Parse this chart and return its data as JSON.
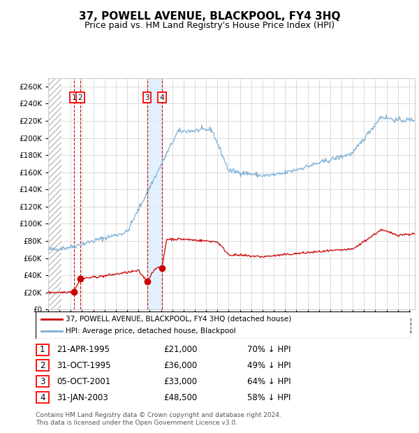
{
  "title": "37, POWELL AVENUE, BLACKPOOL, FY4 3HQ",
  "subtitle": "Price paid vs. HM Land Registry's House Price Index (HPI)",
  "title_fontsize": 11,
  "subtitle_fontsize": 9,
  "transactions": [
    {
      "num": 1,
      "date_label": "21-APR-1995",
      "date_x": 1995.31,
      "price": 21000,
      "pct": "70% ↓ HPI"
    },
    {
      "num": 2,
      "date_label": "31-OCT-1995",
      "date_x": 1995.83,
      "price": 36000,
      "pct": "49% ↓ HPI"
    },
    {
      "num": 3,
      "date_label": "05-OCT-2001",
      "date_x": 2001.76,
      "price": 33000,
      "pct": "64% ↓ HPI"
    },
    {
      "num": 4,
      "date_label": "31-JAN-2003",
      "date_x": 2003.08,
      "price": 48500,
      "pct": "58% ↓ HPI"
    }
  ],
  "legend_line1": "37, POWELL AVENUE, BLACKPOOL, FY4 3HQ (detached house)",
  "legend_line2": "HPI: Average price, detached house, Blackpool",
  "footer": "Contains HM Land Registry data © Crown copyright and database right 2024.\nThis data is licensed under the Open Government Licence v3.0.",
  "hpi_color": "#7bafd4",
  "price_color": "#cc0000",
  "marker_color": "#cc0000",
  "dashed_color": "#cc0000",
  "shade_color": "#ddeeff",
  "hatch_color": "#bbbbbb",
  "grid_color": "#cccccc",
  "ylim": [
    0,
    270000
  ],
  "yticks": [
    0,
    20000,
    40000,
    60000,
    80000,
    100000,
    120000,
    140000,
    160000,
    180000,
    200000,
    220000,
    240000,
    260000
  ],
  "xmin": 1993.0,
  "xmax": 2025.5
}
